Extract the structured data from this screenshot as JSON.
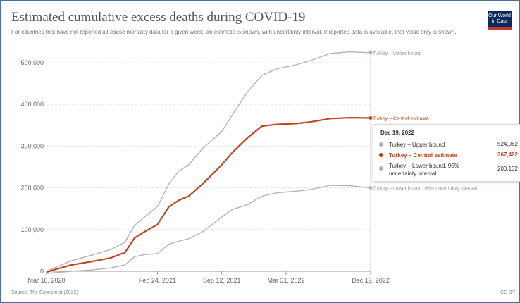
{
  "header": {
    "title": "Estimated cumulative excess deaths during COVID-19",
    "subtitle": "For countries that have not reported all-cause mortality data for a given week, an estimate is shown, with uncertainty interval. If reported data is available, that value only is shown.",
    "logo_line1": "Our World",
    "logo_line2": "in Data"
  },
  "footer": {
    "source": "Source: The Economist (2022)",
    "license": "CC BY"
  },
  "colors": {
    "bound": "#b3b3b3",
    "central": "#c0441f",
    "grid": "#e0e0e0",
    "axis": "#666666"
  },
  "chart_data": {
    "type": "line",
    "title": "Estimated cumulative excess deaths during COVID-19",
    "y_ticks": [
      "0",
      "100,000",
      "200,000",
      "300,000",
      "400,000",
      "500,000"
    ],
    "ylim": [
      0,
      540000
    ],
    "x_ticks": [
      "Mar 16, 2020",
      "Feb 24, 2021",
      "Sep 12, 2021",
      "Mar 31, 2022",
      "Dec 19, 2022"
    ],
    "x_tick_dates": [
      "2020-03-16",
      "2021-02-24",
      "2021-09-12",
      "2022-03-31",
      "2022-12-19"
    ],
    "xlim": [
      "2020-03-16",
      "2022-12-19"
    ],
    "grid": true,
    "series": [
      {
        "name": "Turkey – Upper bound",
        "end_label": "Turkey – Upper bound",
        "role": "bound",
        "points": [
          [
            "2020-03-16",
            0
          ],
          [
            "2020-04-15",
            10000
          ],
          [
            "2020-06-01",
            25000
          ],
          [
            "2020-08-01",
            38000
          ],
          [
            "2020-10-01",
            52000
          ],
          [
            "2020-11-15",
            70000
          ],
          [
            "2020-12-15",
            110000
          ],
          [
            "2021-01-15",
            130000
          ],
          [
            "2021-02-24",
            155000
          ],
          [
            "2021-04-01",
            210000
          ],
          [
            "2021-05-01",
            240000
          ],
          [
            "2021-06-01",
            255000
          ],
          [
            "2021-07-15",
            295000
          ],
          [
            "2021-09-12",
            335000
          ],
          [
            "2021-10-15",
            375000
          ],
          [
            "2021-12-01",
            430000
          ],
          [
            "2022-01-15",
            470000
          ],
          [
            "2022-03-01",
            485000
          ],
          [
            "2022-03-31",
            490000
          ],
          [
            "2022-05-01",
            495000
          ],
          [
            "2022-06-15",
            505000
          ],
          [
            "2022-08-15",
            522000
          ],
          [
            "2022-10-15",
            526000
          ],
          [
            "2022-12-19",
            524062
          ]
        ]
      },
      {
        "name": "Turkey – Central estimate",
        "end_label": "Turkey – Central estimate",
        "role": "central",
        "points": [
          [
            "2020-03-16",
            -2000
          ],
          [
            "2020-04-15",
            5000
          ],
          [
            "2020-06-01",
            15000
          ],
          [
            "2020-08-01",
            23000
          ],
          [
            "2020-10-01",
            32000
          ],
          [
            "2020-11-15",
            45000
          ],
          [
            "2020-12-15",
            80000
          ],
          [
            "2021-01-15",
            95000
          ],
          [
            "2021-02-24",
            112000
          ],
          [
            "2021-04-01",
            155000
          ],
          [
            "2021-05-01",
            170000
          ],
          [
            "2021-06-01",
            180000
          ],
          [
            "2021-07-15",
            210000
          ],
          [
            "2021-09-12",
            255000
          ],
          [
            "2021-10-15",
            285000
          ],
          [
            "2021-12-01",
            320000
          ],
          [
            "2022-01-15",
            348000
          ],
          [
            "2022-03-01",
            352000
          ],
          [
            "2022-03-31",
            353000
          ],
          [
            "2022-05-01",
            354000
          ],
          [
            "2022-06-15",
            358000
          ],
          [
            "2022-08-15",
            366000
          ],
          [
            "2022-10-15",
            368000
          ],
          [
            "2022-12-19",
            367422
          ]
        ]
      },
      {
        "name": "Turkey – Lower bound, 95% uncertainty interval",
        "end_label": "Turkey – Lower bound, 95% uncertainty interval",
        "role": "bound",
        "points": [
          [
            "2020-03-16",
            -5000
          ],
          [
            "2020-04-15",
            -3000
          ],
          [
            "2020-06-01",
            0
          ],
          [
            "2020-08-01",
            3000
          ],
          [
            "2020-10-01",
            8000
          ],
          [
            "2020-11-15",
            15000
          ],
          [
            "2020-12-15",
            35000
          ],
          [
            "2021-01-15",
            40000
          ],
          [
            "2021-02-24",
            42000
          ],
          [
            "2021-04-01",
            65000
          ],
          [
            "2021-05-01",
            72000
          ],
          [
            "2021-06-01",
            78000
          ],
          [
            "2021-07-15",
            95000
          ],
          [
            "2021-09-12",
            130000
          ],
          [
            "2021-10-15",
            148000
          ],
          [
            "2021-12-01",
            160000
          ],
          [
            "2022-01-15",
            180000
          ],
          [
            "2022-03-01",
            188000
          ],
          [
            "2022-03-31",
            190000
          ],
          [
            "2022-05-01",
            192000
          ],
          [
            "2022-06-15",
            196000
          ],
          [
            "2022-08-15",
            206000
          ],
          [
            "2022-10-15",
            205000
          ],
          [
            "2022-12-19",
            200132
          ]
        ]
      }
    ],
    "tooltip": {
      "date": "Dec 19, 2022",
      "rows": [
        {
          "label": "Turkey – Upper bound",
          "value": "524,062",
          "color": "#b3b3b3"
        },
        {
          "label": "Turkey – Central estimate",
          "value": "367,422",
          "color": "#c0441f"
        },
        {
          "label": "Turkey – Lower bound, 95% uncertainty interval",
          "value": "200,132",
          "color": "#b3b3b3"
        }
      ]
    }
  }
}
